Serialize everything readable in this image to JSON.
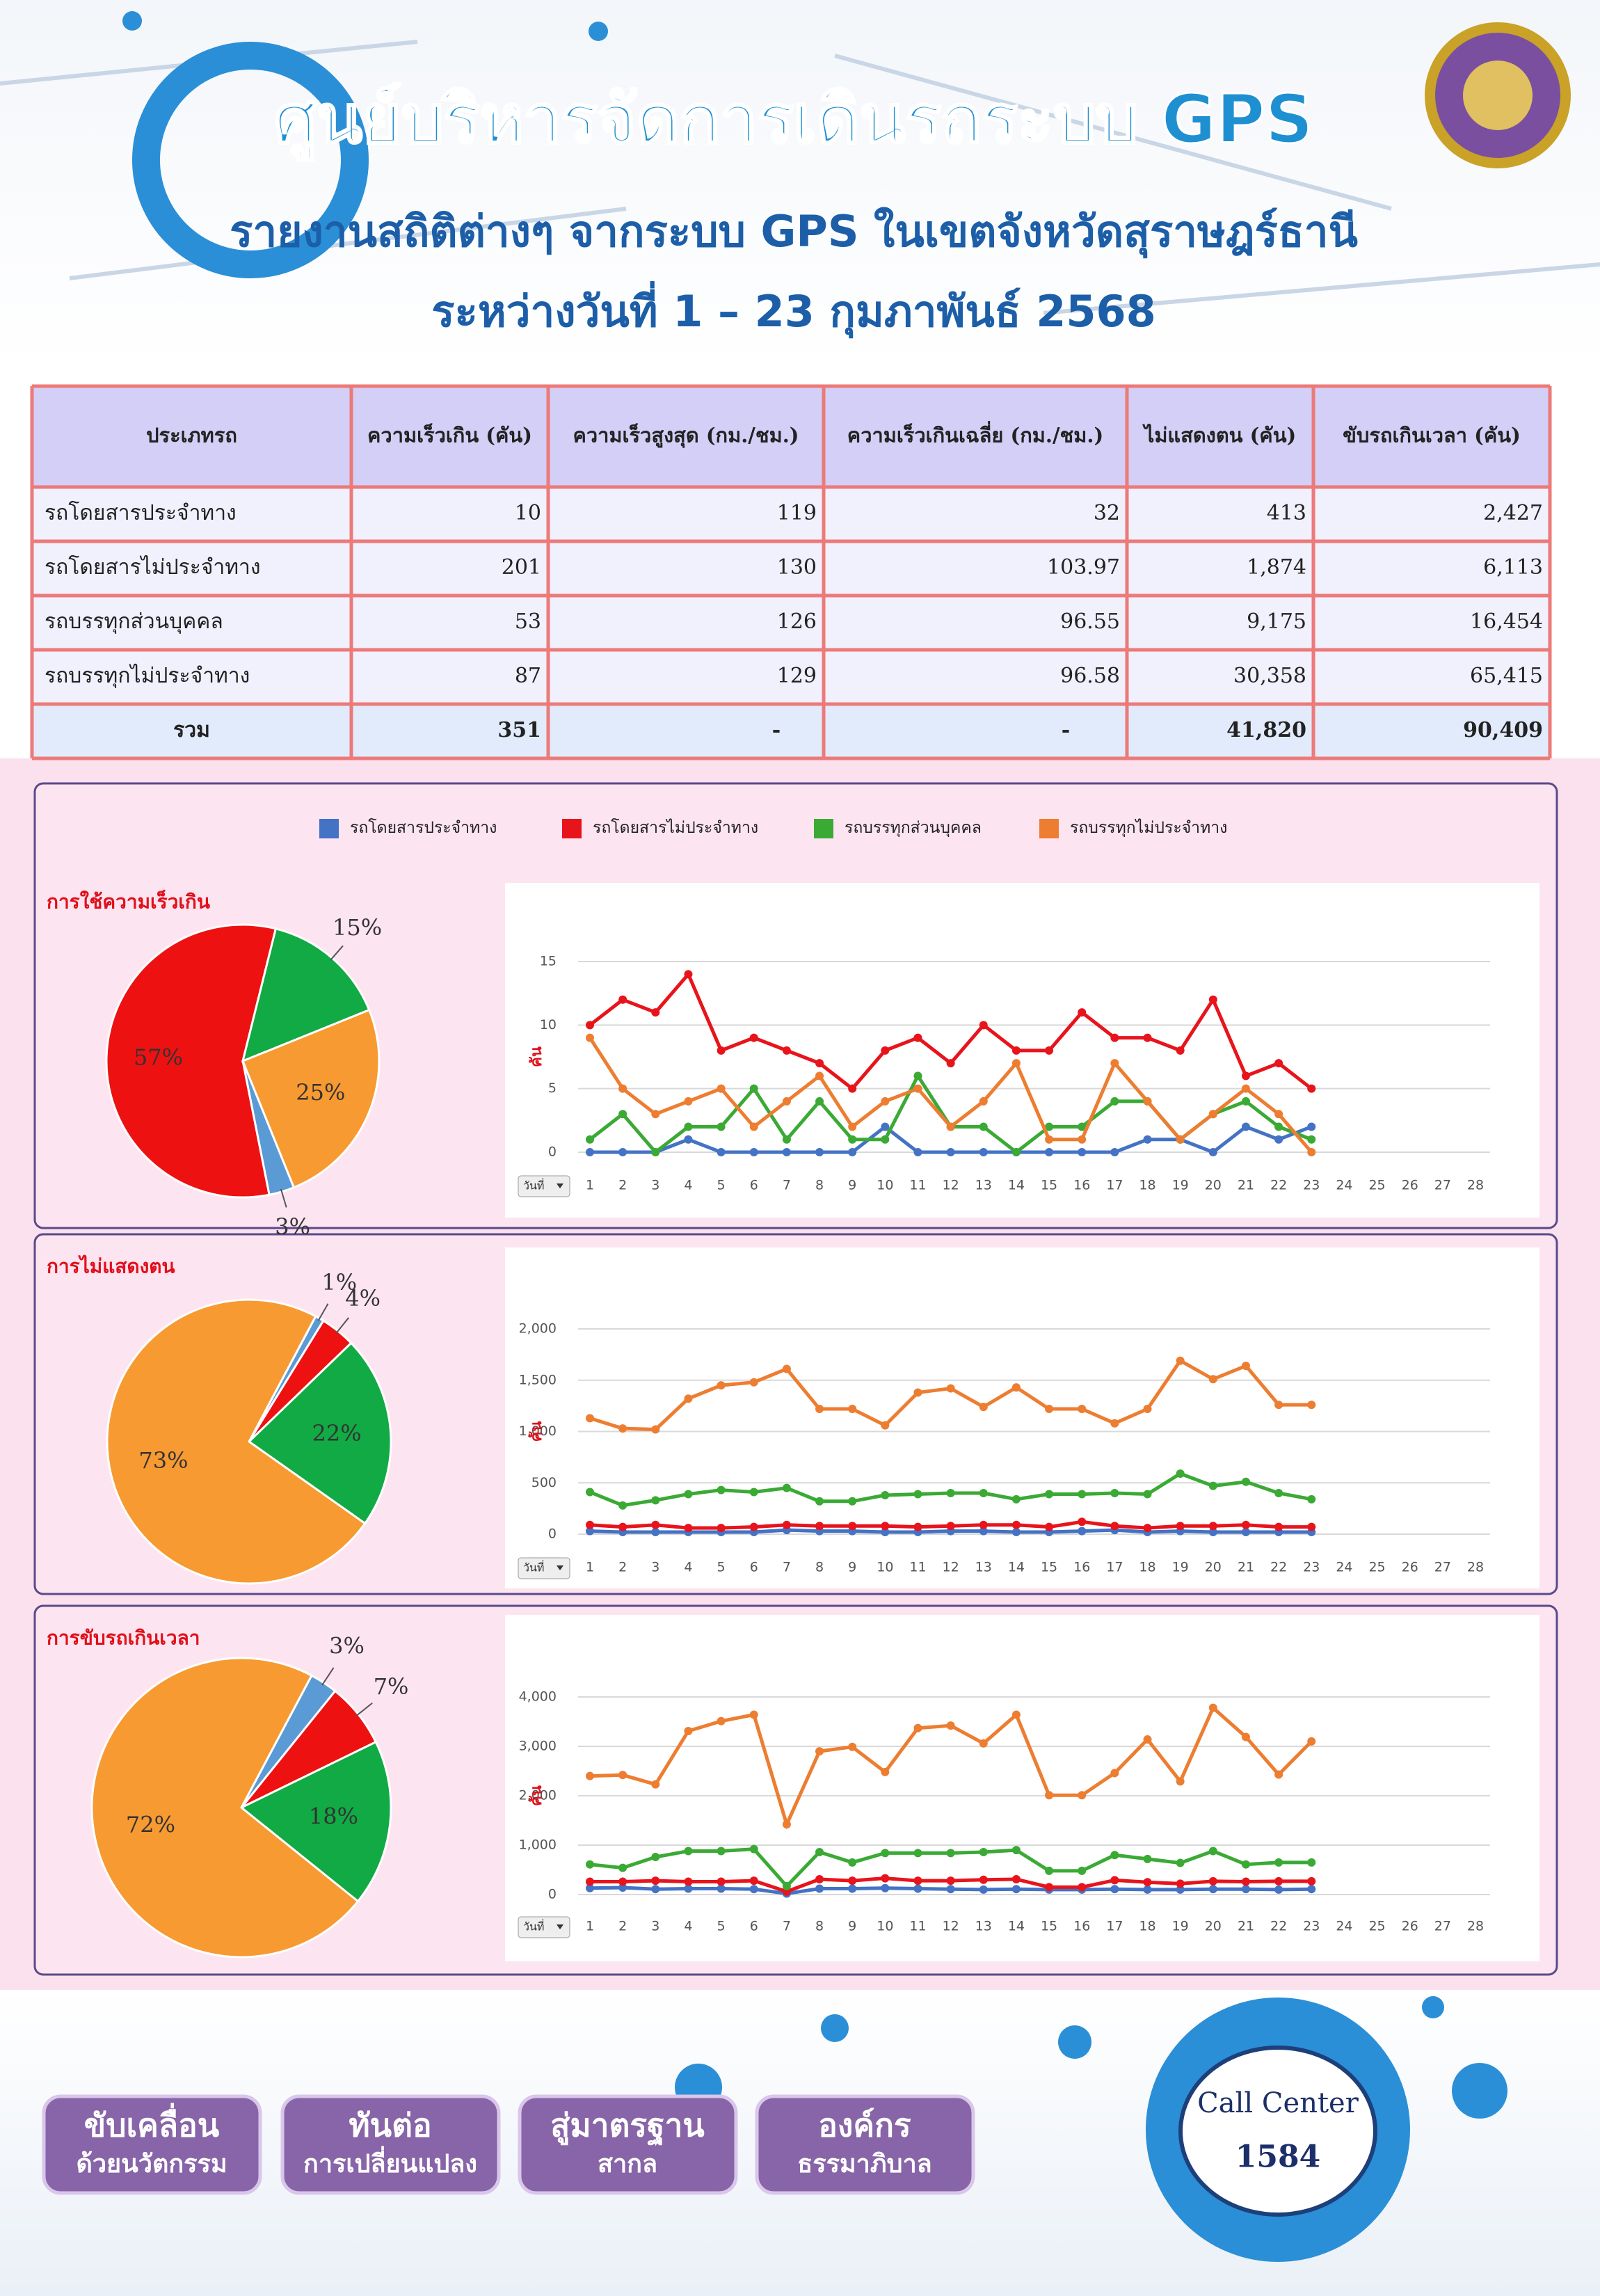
{
  "header": {
    "title": "ศูนย์บริหารจัดการเดินรถระบบ GPS",
    "subtitle": "รายงานสถิติต่างๆ จากระบบ GPS ในเขตจังหวัดสุราษฎร์ธานี",
    "date": "ระหว่างวันที่  1 – 23 กุมภาพันธ์ 2568"
  },
  "table": {
    "headers": [
      "ประเภทรถ",
      "ความเร็วเกิน (คัน)",
      "ความเร็วสูงสุด (กม./ชม.)",
      "ความเร็วเกินเฉลี่ย (กม./ชม.)",
      "ไม่แสดงตน (คัน)",
      "ขับรถเกินเวลา (คัน)"
    ],
    "rows": [
      [
        "รถโดยสารประจำทาง",
        "10",
        "119",
        "32",
        "413",
        "2,427"
      ],
      [
        "รถโดยสารไม่ประจำทาง",
        "201",
        "130",
        "103.97",
        "1,874",
        "6,113"
      ],
      [
        "รถบรรทุกส่วนบุคคล",
        "53",
        "126",
        "96.55",
        "9,175",
        "16,454"
      ],
      [
        "รถบรรทุกไม่ประจำทาง",
        "87",
        "129",
        "96.58",
        "30,358",
        "65,415"
      ],
      [
        "รวม",
        "351",
        "-",
        "-",
        "41,820",
        "90,409"
      ]
    ]
  },
  "chart_data": [
    {
      "type": "pie",
      "title": "การใช้ความเร็วเกิน",
      "values": [
        3,
        57,
        15,
        25
      ],
      "value_labels": [
        "3%",
        "57%",
        "15%",
        "25%"
      ],
      "colors": [
        "#5b9bd5",
        "#ee1111",
        "#11aa44",
        "#f79a32"
      ]
    },
    {
      "type": "line",
      "ylabel": "คัน",
      "filter_label": "วันที่",
      "x": [
        1,
        2,
        3,
        4,
        5,
        6,
        7,
        8,
        9,
        10,
        11,
        12,
        13,
        14,
        15,
        16,
        17,
        18,
        19,
        20,
        21,
        22,
        23
      ],
      "xlim": [
        1,
        28
      ],
      "xticks": [
        1,
        2,
        3,
        4,
        5,
        6,
        7,
        8,
        9,
        10,
        11,
        12,
        13,
        14,
        15,
        16,
        17,
        18,
        19,
        20,
        21,
        22,
        23,
        24,
        25,
        26,
        27,
        28
      ],
      "ylim": [
        0,
        15
      ],
      "yticks": [
        0,
        5,
        10,
        15
      ],
      "grid": true,
      "series": [
        {
          "name": "รถโดยสารประจำทาง",
          "color": "#4472c4",
          "values": [
            0,
            0,
            0,
            1,
            0,
            0,
            0,
            0,
            0,
            2,
            0,
            0,
            0,
            0,
            0,
            0,
            0,
            1,
            1,
            0,
            2,
            1,
            2
          ]
        },
        {
          "name": "รถโดยสารไม่ประจำทาง",
          "color": "#e8141c",
          "values": [
            10,
            12,
            11,
            14,
            8,
            9,
            8,
            7,
            5,
            8,
            9,
            7,
            10,
            8,
            8,
            11,
            9,
            9,
            8,
            12,
            6,
            7,
            5
          ]
        },
        {
          "name": "รถบรรทุกส่วนบุคคล",
          "color": "#3aaa35",
          "values": [
            1,
            3,
            0,
            2,
            2,
            5,
            1,
            4,
            1,
            1,
            6,
            2,
            2,
            0,
            2,
            2,
            4,
            4,
            1,
            3,
            4,
            2,
            1
          ]
        },
        {
          "name": "รถบรรทุกไม่ประจำทาง",
          "color": "#ed7d31",
          "values": [
            9,
            5,
            3,
            4,
            5,
            2,
            4,
            6,
            2,
            4,
            5,
            2,
            4,
            7,
            1,
            1,
            7,
            4,
            1,
            3,
            5,
            3,
            0
          ]
        }
      ]
    },
    {
      "type": "pie",
      "title": "การไม่แสดงตน",
      "values": [
        1,
        4,
        22,
        73
      ],
      "value_labels": [
        "1%",
        "4%",
        "22%",
        "73%"
      ],
      "colors": [
        "#5b9bd5",
        "#ee1111",
        "#11aa44",
        "#f79a32"
      ]
    },
    {
      "type": "line",
      "ylabel": "คัน",
      "filter_label": "วันที่",
      "x": [
        1,
        2,
        3,
        4,
        5,
        6,
        7,
        8,
        9,
        10,
        11,
        12,
        13,
        14,
        15,
        16,
        17,
        18,
        19,
        20,
        21,
        22,
        23
      ],
      "xlim": [
        1,
        28
      ],
      "xticks": [
        1,
        2,
        3,
        4,
        5,
        6,
        7,
        8,
        9,
        10,
        11,
        12,
        13,
        14,
        15,
        16,
        17,
        18,
        19,
        20,
        21,
        22,
        23,
        24,
        25,
        26,
        27,
        28
      ],
      "ylim": [
        0,
        2000
      ],
      "yticks": [
        0,
        500,
        {
          "value": 1000,
          "label": "1,000"
        },
        {
          "value": 1500,
          "label": "1,500"
        },
        {
          "value": 2000,
          "label": "2,000"
        }
      ],
      "grid": true,
      "series": [
        {
          "color": "#4472c4",
          "values": [
            30,
            20,
            20,
            20,
            20,
            20,
            40,
            30,
            30,
            20,
            20,
            30,
            30,
            20,
            20,
            30,
            40,
            20,
            30,
            20,
            20,
            20,
            20
          ]
        },
        {
          "color": "#e8141c",
          "values": [
            90,
            70,
            90,
            60,
            60,
            70,
            90,
            80,
            80,
            80,
            70,
            80,
            90,
            90,
            70,
            120,
            80,
            60,
            80,
            80,
            90,
            70,
            70
          ]
        },
        {
          "color": "#3aaa35",
          "values": [
            410,
            280,
            330,
            390,
            430,
            410,
            450,
            320,
            320,
            380,
            390,
            400,
            400,
            340,
            390,
            390,
            400,
            390,
            590,
            470,
            510,
            400,
            340
          ]
        },
        {
          "color": "#ed7d31",
          "values": [
            1130,
            1030,
            1020,
            1320,
            1450,
            1480,
            1610,
            1220,
            1220,
            1060,
            1380,
            1420,
            1240,
            1430,
            1220,
            1220,
            1080,
            1220,
            1690,
            1510,
            1640,
            1260,
            1260
          ]
        }
      ]
    },
    {
      "type": "pie",
      "title": "การขับรถเกินเวลา",
      "values": [
        3,
        7,
        18,
        72
      ],
      "value_labels": [
        "3%",
        "7%",
        "18%",
        "72%"
      ],
      "colors": [
        "#5b9bd5",
        "#ee1111",
        "#11aa44",
        "#f79a32"
      ]
    },
    {
      "type": "line",
      "ylabel": "คัน",
      "filter_label": "วันที่",
      "x": [
        1,
        2,
        3,
        4,
        5,
        6,
        7,
        8,
        9,
        10,
        11,
        12,
        13,
        14,
        15,
        16,
        17,
        18,
        19,
        20,
        21,
        22,
        23
      ],
      "xlim": [
        1,
        28
      ],
      "xticks": [
        1,
        2,
        3,
        4,
        5,
        6,
        7,
        8,
        9,
        10,
        11,
        12,
        13,
        14,
        15,
        16,
        17,
        18,
        19,
        20,
        21,
        22,
        23,
        24,
        25,
        26,
        27,
        28
      ],
      "ylim": [
        0,
        4000
      ],
      "yticks": [
        0,
        {
          "value": 1000,
          "label": "1,000"
        },
        {
          "value": 2000,
          "label": "2,000"
        },
        {
          "value": 3000,
          "label": "3,000"
        },
        {
          "value": 4000,
          "label": "4,000"
        }
      ],
      "grid": true,
      "series": [
        {
          "color": "#4472c4",
          "values": [
            130,
            140,
            110,
            120,
            120,
            110,
            20,
            120,
            120,
            130,
            120,
            110,
            100,
            110,
            100,
            100,
            110,
            100,
            100,
            110,
            110,
            100,
            110
          ]
        },
        {
          "color": "#e8141c",
          "values": [
            260,
            260,
            280,
            260,
            260,
            280,
            60,
            310,
            280,
            330,
            280,
            280,
            300,
            310,
            150,
            150,
            290,
            250,
            220,
            270,
            260,
            270,
            270
          ]
        },
        {
          "color": "#3aaa35",
          "values": [
            610,
            540,
            760,
            880,
            880,
            920,
            170,
            860,
            650,
            840,
            840,
            840,
            860,
            900,
            480,
            480,
            800,
            720,
            640,
            880,
            610,
            650,
            650
          ]
        },
        {
          "color": "#ed7d31",
          "values": [
            2400,
            2420,
            2230,
            3310,
            3510,
            3640,
            1420,
            2900,
            2990,
            2480,
            3370,
            3420,
            3060,
            3640,
            2010,
            2010,
            2460,
            3140,
            2290,
            3780,
            3190,
            2430,
            3100
          ]
        }
      ]
    }
  ],
  "footer": {
    "buttons": [
      [
        "ขับเคลื่อน",
        "ด้วยนวัตกรรม"
      ],
      [
        "ทันต่อ",
        "การเปลี่ยนแปลง"
      ],
      [
        "สู่มาตรฐาน",
        "สากล"
      ],
      [
        "องค์กร",
        "ธรรมาภิบาล"
      ]
    ],
    "call_center": "Call Center",
    "phone": "1584"
  }
}
